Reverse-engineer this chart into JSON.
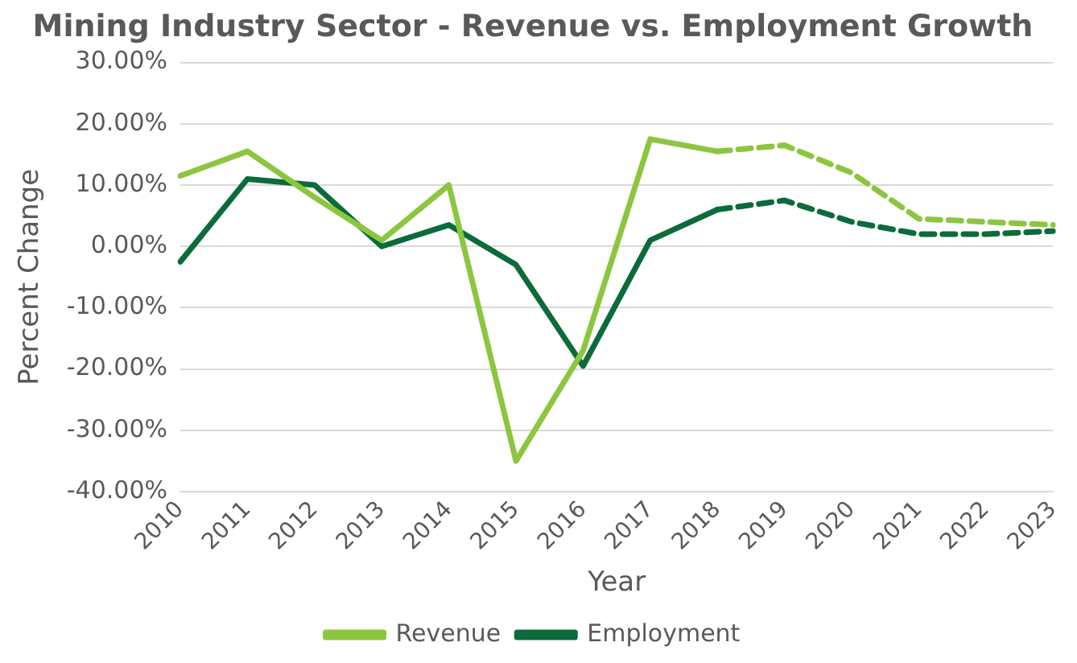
{
  "chart_data": {
    "type": "line",
    "title": "Mining Industry Sector - Revenue vs. Employment Growth",
    "xlabel": "Year",
    "ylabel": "Percent Change",
    "categories": [
      "2010",
      "2011",
      "2012",
      "2013",
      "2014",
      "2015",
      "2016",
      "2017",
      "2018",
      "2019",
      "2020",
      "2021",
      "2022",
      "2023"
    ],
    "series": [
      {
        "name": "Revenue",
        "color": "#8cc63f",
        "line_style": "solid",
        "values": [
          11.5,
          15.5,
          8,
          1,
          10,
          -35,
          -17,
          17.5,
          15.5,
          null,
          null,
          null,
          null,
          null
        ]
      },
      {
        "color": "#8cc63f",
        "line_style": "dashed",
        "values": [
          null,
          null,
          null,
          null,
          null,
          null,
          null,
          null,
          15.5,
          16.5,
          12,
          4.5,
          4,
          3.5
        ]
      },
      {
        "name": "Employment",
        "color": "#0b6b3a",
        "line_style": "solid",
        "values": [
          -2.5,
          11,
          10,
          0,
          3.5,
          -3,
          -19.5,
          1,
          6,
          null,
          null,
          null,
          null,
          null
        ]
      },
      {
        "color": "#0b6b3a",
        "line_style": "dashed",
        "values": [
          null,
          null,
          null,
          null,
          null,
          null,
          null,
          null,
          6,
          7.5,
          4,
          2,
          2,
          2.5
        ]
      }
    ],
    "ylim": [
      -40,
      30
    ],
    "yticks": [
      {
        "value": -40,
        "label": "-40.00%"
      },
      {
        "value": -30,
        "label": "-30.00%"
      },
      {
        "value": -20,
        "label": "-20.00%"
      },
      {
        "value": -10,
        "label": "-10.00%"
      },
      {
        "value": 0,
        "label": "0.00%"
      },
      {
        "value": 10,
        "label": "10.00%"
      },
      {
        "value": 20,
        "label": "20.00%"
      },
      {
        "value": 30,
        "label": "30.00%"
      }
    ],
    "grid": "y",
    "legend": "bottom",
    "marker": "none"
  }
}
